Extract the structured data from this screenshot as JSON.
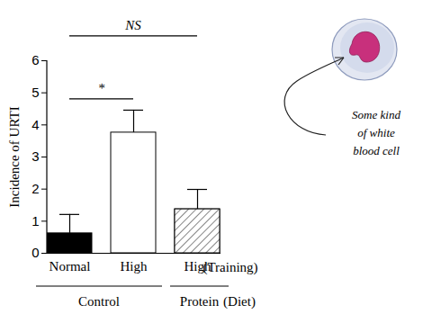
{
  "chart_data": {
    "type": "bar",
    "categories": [
      "Normal",
      "High",
      "High"
    ],
    "values": [
      0.62,
      3.76,
      1.37
    ],
    "errors": [
      0.59,
      0.7,
      0.62
    ],
    "colors": [
      "#000000",
      "#ffffff",
      "#ffffff"
    ],
    "ylabel": "Incidence of URTI",
    "ylim": [
      0,
      6
    ],
    "yticks": [
      0,
      1,
      2,
      3,
      4,
      5,
      6
    ],
    "xlabel": "(Training)",
    "groups": [
      {
        "label": "Control",
        "categories": [
          0,
          1
        ]
      },
      {
        "label": "Protein",
        "categories": [
          2
        ]
      }
    ],
    "group_label": "(Diet)",
    "significance": [
      {
        "between": [
          0,
          1
        ],
        "label": "*"
      },
      {
        "between": [
          0,
          2
        ],
        "label": "NS"
      }
    ],
    "annotation": {
      "lines": [
        "Some kind",
        "of white",
        "blood cell"
      ]
    }
  }
}
